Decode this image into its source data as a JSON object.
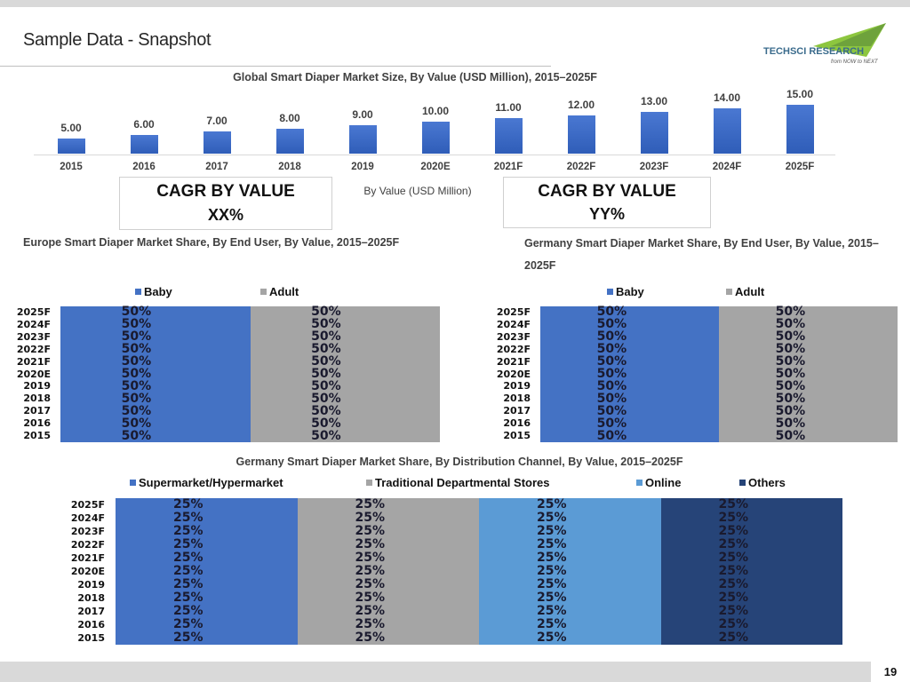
{
  "page": {
    "title": "Sample Data - Snapshot",
    "page_number": "19"
  },
  "logo": {
    "text": "TechSci Research",
    "tagline": "from NOW to NEXT",
    "colors": [
      "#8dc63f",
      "#3a6b8c"
    ]
  },
  "chart_data": [
    {
      "type": "bar",
      "title": "Global Smart Diaper Market Size, By Value (USD Million), 2015–2025F",
      "categories": [
        "2015",
        "2016",
        "2017",
        "2018",
        "2019",
        "2020E",
        "2021F",
        "2022F",
        "2023F",
        "2024F",
        "2025F"
      ],
      "values": [
        5,
        6,
        7,
        8,
        9,
        10,
        11,
        12,
        13,
        14,
        15
      ],
      "value_labels": [
        "5.00",
        "6.00",
        "7.00",
        "8.00",
        "9.00",
        "10.00",
        "11.00",
        "12.00",
        "13.00",
        "14.00",
        "15.00"
      ],
      "legend": "By Value (USD Million)",
      "color": "#4472c4"
    },
    {
      "type": "bar",
      "orientation": "horizontal",
      "stacked": "100%",
      "title": "Europe Smart Diaper Market Share, By End User, By Value, 2015–2025F",
      "categories": [
        "2025F",
        "2024F",
        "2023F",
        "2022F",
        "2021F",
        "2020E",
        "2019",
        "2018",
        "2017",
        "2016",
        "2015"
      ],
      "series": [
        {
          "name": "Baby",
          "color": "#4472c4",
          "values": [
            50,
            50,
            50,
            50,
            50,
            50,
            50,
            50,
            50,
            50,
            50
          ]
        },
        {
          "name": "Adult",
          "color": "#a5a5a5",
          "values": [
            50,
            50,
            50,
            50,
            50,
            50,
            50,
            50,
            50,
            50,
            50
          ]
        }
      ]
    },
    {
      "type": "bar",
      "orientation": "horizontal",
      "stacked": "100%",
      "title": "Germany Smart Diaper Market Share, By End User, By Value, 2015–2025F",
      "categories": [
        "2025F",
        "2024F",
        "2023F",
        "2022F",
        "2021F",
        "2020E",
        "2019",
        "2018",
        "2017",
        "2016",
        "2015"
      ],
      "series": [
        {
          "name": "Baby",
          "color": "#4472c4",
          "values": [
            50,
            50,
            50,
            50,
            50,
            50,
            50,
            50,
            50,
            50,
            50
          ]
        },
        {
          "name": "Adult",
          "color": "#a5a5a5",
          "values": [
            50,
            50,
            50,
            50,
            50,
            50,
            50,
            50,
            50,
            50,
            50
          ]
        }
      ]
    },
    {
      "type": "bar",
      "orientation": "horizontal",
      "stacked": "100%",
      "title": "Germany Smart Diaper Market Share, By Distribution Channel, By Value, 2015–2025F",
      "categories": [
        "2025F",
        "2024F",
        "2023F",
        "2022F",
        "2021F",
        "2020E",
        "2019",
        "2018",
        "2017",
        "2016",
        "2015"
      ],
      "series": [
        {
          "name": "Supermarket/Hypermarket",
          "color": "#4472c4",
          "values": [
            25,
            25,
            25,
            25,
            25,
            25,
            25,
            25,
            25,
            25,
            25
          ]
        },
        {
          "name": "Traditional Departmental Stores",
          "color": "#a5a5a5",
          "values": [
            25,
            25,
            25,
            25,
            25,
            25,
            25,
            25,
            25,
            25,
            25
          ]
        },
        {
          "name": "Online",
          "color": "#5b9bd5",
          "values": [
            25,
            25,
            25,
            25,
            25,
            25,
            25,
            25,
            25,
            25,
            25
          ]
        },
        {
          "name": "Others",
          "color": "#264478",
          "values": [
            25,
            25,
            25,
            25,
            25,
            25,
            25,
            25,
            25,
            25,
            25
          ]
        }
      ]
    }
  ],
  "cagr_boxes": [
    {
      "label": "CAGR BY VALUE",
      "value": "XX%"
    },
    {
      "label": "CAGR BY VALUE",
      "value": "YY%"
    }
  ]
}
